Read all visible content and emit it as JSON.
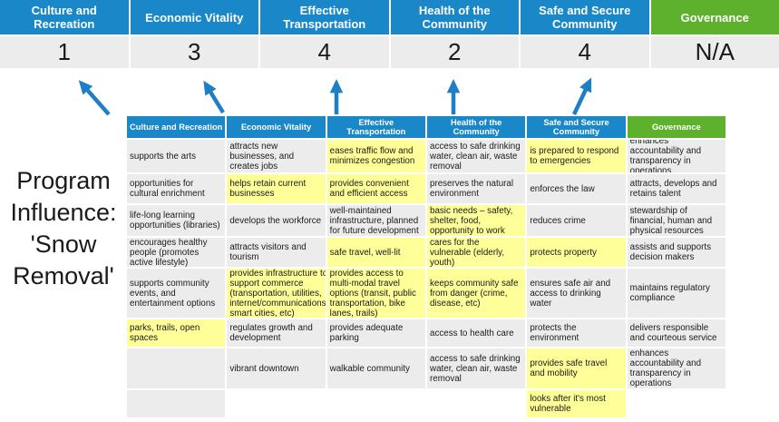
{
  "title": {
    "text": "Program\nInfluence:\n'Snow\nRemoval'"
  },
  "colors": {
    "blue": "#1A87C9",
    "green": "#5EB12C",
    "yellow": "#FFFF99",
    "gray": "#ECECEC",
    "arrow": "#1F7FC4",
    "score_text": "#1A1A1A"
  },
  "priorities": [
    {
      "label": "Culture and Recreation",
      "score": "1",
      "theme": "blue"
    },
    {
      "label": "Economic Vitality",
      "score": "3",
      "theme": "blue"
    },
    {
      "label": "Effective Transportation",
      "score": "4",
      "theme": "blue"
    },
    {
      "label": "Health of the Community",
      "score": "2",
      "theme": "blue"
    },
    {
      "label": "Safe and Secure Community",
      "score": "4",
      "theme": "blue"
    },
    {
      "label": "Governance",
      "score": "N/A",
      "theme": "green"
    }
  ],
  "table": {
    "headers": [
      {
        "label": "Culture and Recreation",
        "theme": "blue"
      },
      {
        "label": "Economic Vitality",
        "theme": "blue"
      },
      {
        "label": "Effective Transportation",
        "theme": "blue"
      },
      {
        "label": "Health of the Community",
        "theme": "blue"
      },
      {
        "label": "Safe and Secure Community",
        "theme": "blue"
      },
      {
        "label": "Governance",
        "theme": "green"
      }
    ],
    "rows": [
      [
        {
          "text": "supports the arts",
          "bg": "gray"
        },
        {
          "text": "attracts new businesses, and creates jobs",
          "bg": "gray"
        },
        {
          "text": "eases traffic flow and minimizes congestion",
          "bg": "yellow"
        },
        {
          "text": "access to safe drinking water, clean air, waste removal",
          "bg": "gray"
        },
        {
          "text": "is prepared to respond to emergencies",
          "bg": "yellow"
        },
        {
          "text": "enhances accountability and transparency in operations",
          "bg": "gray"
        }
      ],
      [
        {
          "text": "opportunities for cultural enrichment",
          "bg": "gray"
        },
        {
          "text": "helps retain current businesses",
          "bg": "yellow"
        },
        {
          "text": "provides convenient and efficient access",
          "bg": "yellow"
        },
        {
          "text": "preserves the natural environment",
          "bg": "gray"
        },
        {
          "text": "enforces the law",
          "bg": "gray"
        },
        {
          "text": "attracts, develops and retains talent",
          "bg": "gray"
        }
      ],
      [
        {
          "text": "life-long learning opportunities (libraries)",
          "bg": "gray"
        },
        {
          "text": "develops the workforce",
          "bg": "gray"
        },
        {
          "text": "well-maintained infrastructure, planned for future development",
          "bg": "gray"
        },
        {
          "text": "basic needs – safety, shelter, food, opportunity to work",
          "bg": "yellow"
        },
        {
          "text": "reduces crime",
          "bg": "gray"
        },
        {
          "text": "stewardship of financial, human and physical resources",
          "bg": "gray"
        }
      ],
      [
        {
          "text": "encourages healthy people (promotes active lifestyle)",
          "bg": "gray"
        },
        {
          "text": "attracts visitors and tourism",
          "bg": "gray"
        },
        {
          "text": "safe travel, well-lit",
          "bg": "yellow"
        },
        {
          "text": "cares for the vulnerable (elderly, youth)",
          "bg": "yellow"
        },
        {
          "text": "protects property",
          "bg": "yellow"
        },
        {
          "text": "assists and supports decision makers",
          "bg": "gray"
        }
      ],
      [
        {
          "text": "supports community events, and entertainment options",
          "bg": "gray"
        },
        {
          "text": "provides infrastructure to support commerce (transportation, utilities, internet/communications, smart cities, etc)",
          "bg": "yellow"
        },
        {
          "text": "provides access to multi-modal travel options (transit, public transportation, bike lanes, trails)",
          "bg": "yellow"
        },
        {
          "text": "keeps community safe from danger (crime, disease, etc)",
          "bg": "yellow"
        },
        {
          "text": "ensures safe air and access to drinking water",
          "bg": "gray"
        },
        {
          "text": "maintains regulatory compliance",
          "bg": "gray"
        }
      ],
      [
        {
          "text": "parks, trails, open spaces",
          "bg": "yellow"
        },
        {
          "text": "regulates growth and development",
          "bg": "gray"
        },
        {
          "text": "provides adequate parking",
          "bg": "gray"
        },
        {
          "text": "access to health care",
          "bg": "gray"
        },
        {
          "text": "protects the environment",
          "bg": "gray"
        },
        {
          "text": "delivers responsible and courteous service",
          "bg": "gray"
        }
      ],
      [
        {
          "text": "",
          "bg": "gray"
        },
        {
          "text": "vibrant downtown",
          "bg": "gray"
        },
        {
          "text": "walkable community",
          "bg": "gray"
        },
        {
          "text": "access to safe drinking water, clean air, waste removal",
          "bg": "gray"
        },
        {
          "text": "provides safe travel and mobility",
          "bg": "yellow"
        },
        {
          "text": "enhances accountability and transparency in operations",
          "bg": "gray"
        }
      ],
      [
        {
          "text": "",
          "bg": "gray"
        },
        {
          "text": "",
          "bg": "white"
        },
        {
          "text": "",
          "bg": "white"
        },
        {
          "text": "",
          "bg": "white"
        },
        {
          "text": "looks after it's most vulnerable",
          "bg": "yellow"
        },
        {
          "text": "",
          "bg": "white"
        }
      ]
    ]
  }
}
